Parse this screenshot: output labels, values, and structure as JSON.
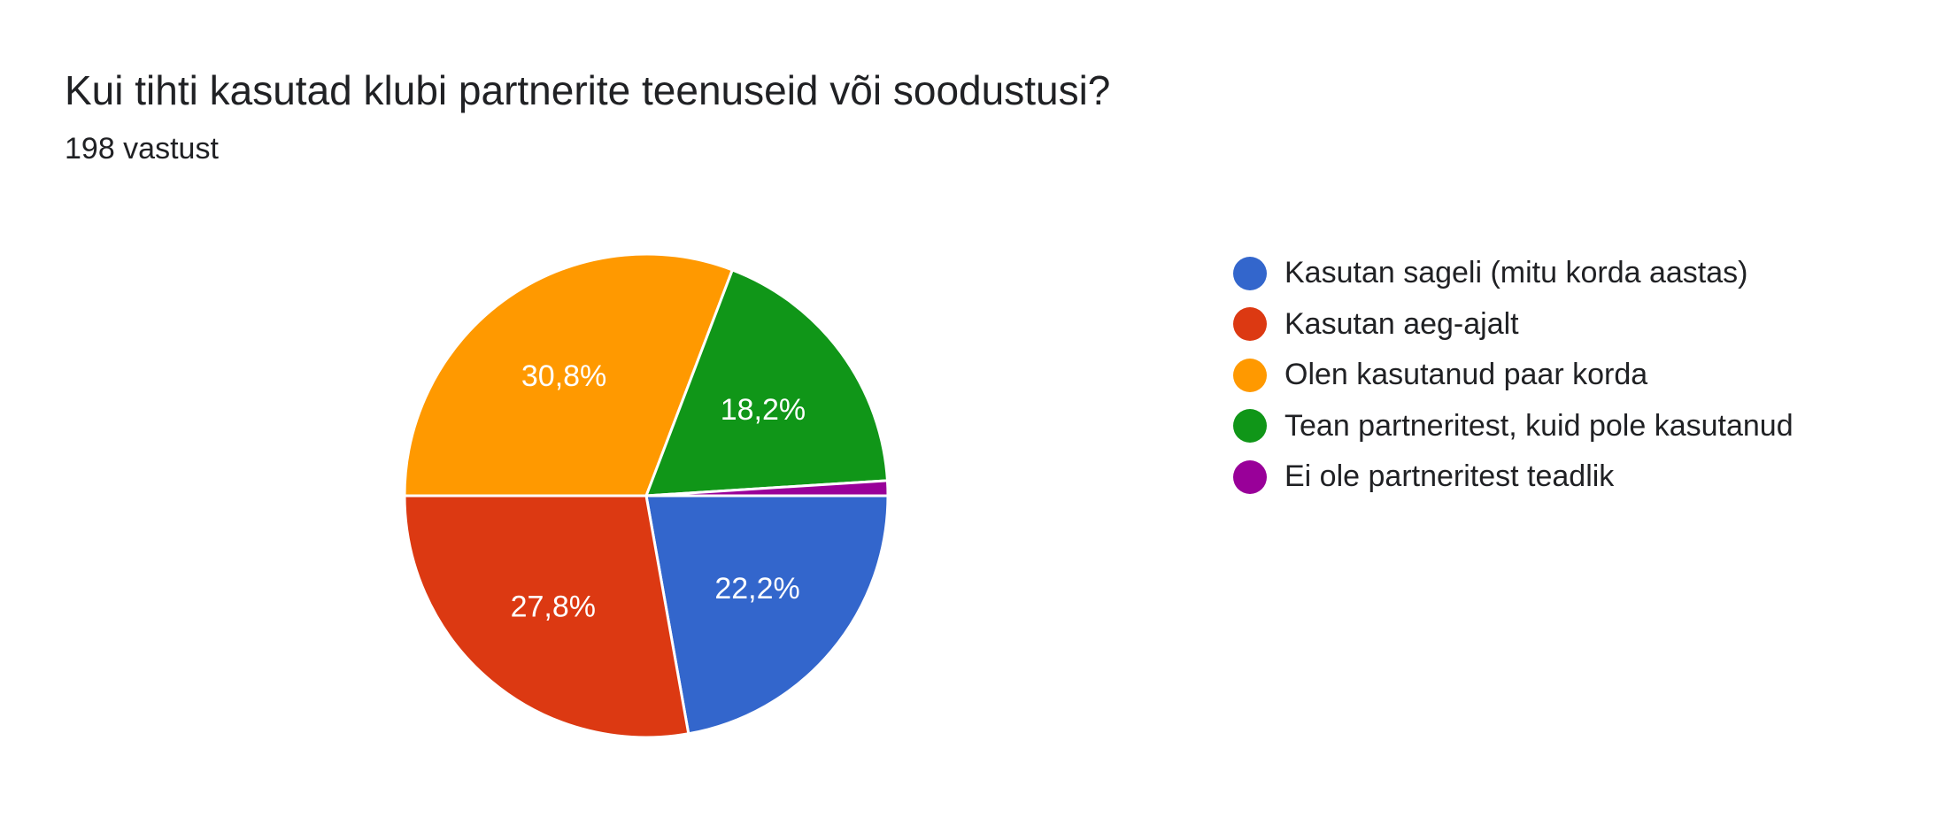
{
  "header": {
    "title": "Kui tihti kasutad klubi partnerite teenuseid või soodustusi?",
    "subtitle": "198 vastust"
  },
  "chart_data": {
    "type": "pie",
    "title": "Kui tihti kasutad klubi partnerite teenuseid või soodustusi?",
    "total_responses": 198,
    "legend_position": "right",
    "slices": [
      {
        "name": "Kasutan sageli (mitu korda aastas)",
        "percent": 22.2,
        "label": "22,2%",
        "color": "#3366cc"
      },
      {
        "name": "Kasutan aeg-ajalt",
        "percent": 27.8,
        "label": "27,8%",
        "color": "#dc3912"
      },
      {
        "name": "Olen kasutanud paar korda",
        "percent": 30.8,
        "label": "30,8%",
        "color": "#ff9900"
      },
      {
        "name": "Tean partneritest, kuid pole kasutanud",
        "percent": 18.2,
        "label": "18,2%",
        "color": "#109618"
      },
      {
        "name": "Ei ole partneritest teadlik",
        "percent": 1.0,
        "label": "",
        "color": "#990099"
      }
    ]
  }
}
